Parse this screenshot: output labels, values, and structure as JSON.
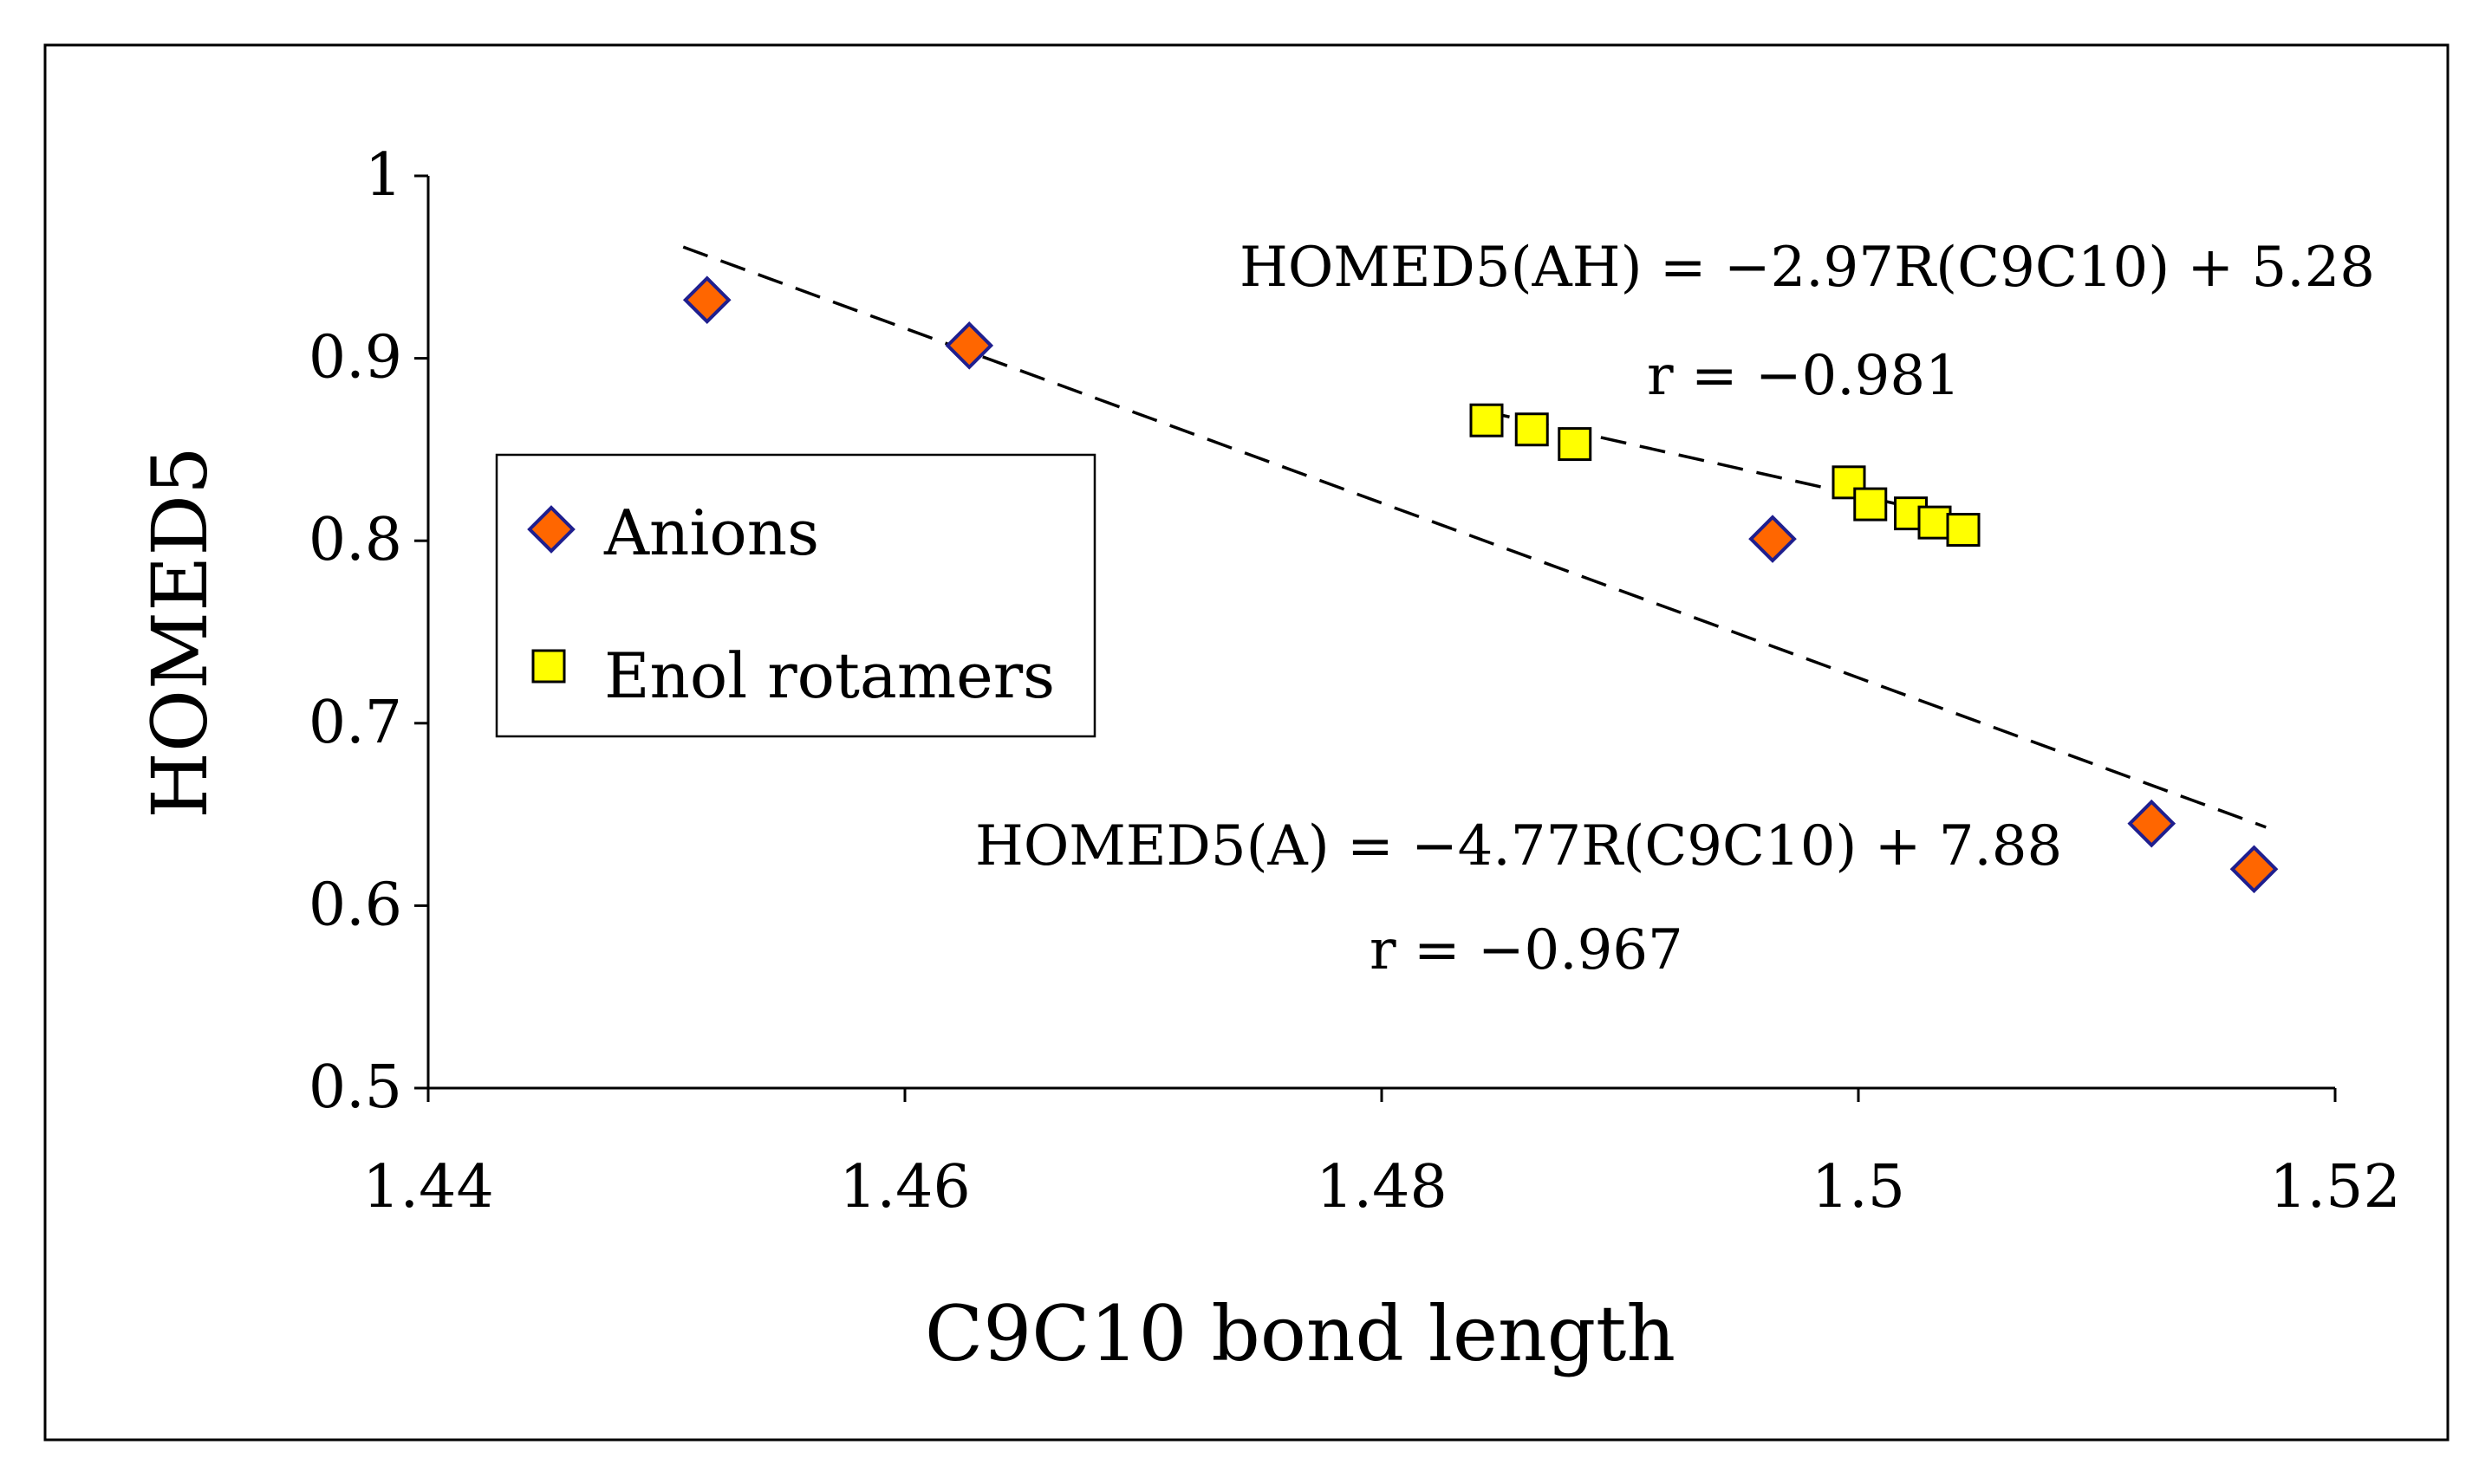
{
  "chart_data": {
    "type": "scatter",
    "title": "",
    "xlabel": "C9C10 bond length",
    "ylabel": "HOMED5",
    "xlim": [
      1.44,
      1.52
    ],
    "ylim": [
      0.5,
      1.0
    ],
    "x_ticks": [
      "1.44",
      "1.46",
      "1.48",
      "1.5",
      "1.52"
    ],
    "y_ticks": [
      "0.5",
      "0.6",
      "0.7",
      "0.8",
      "0.9",
      "1"
    ],
    "grid": false,
    "legend_position": "left-middle",
    "series": [
      {
        "name": "Anions",
        "marker": "diamond",
        "color": "#FF6600",
        "edge_color": "#1F1F8F",
        "x": [
          1.4517,
          1.4627,
          1.4964,
          1.5123,
          1.5166
        ],
        "y": [
          0.932,
          0.907,
          0.801,
          0.645,
          0.62
        ]
      },
      {
        "name": "Enol rotamers",
        "marker": "square",
        "color": "#FFFF00",
        "edge_color": "#000000",
        "x": [
          1.4844,
          1.4863,
          1.4881,
          1.4996,
          1.5005,
          1.5022,
          1.5032,
          1.5044
        ],
        "y": [
          0.866,
          0.861,
          0.853,
          0.832,
          0.82,
          0.815,
          0.81,
          0.806
        ]
      }
    ],
    "trendlines": [
      {
        "name": "HOMED5(AH) fit",
        "style": "dashed",
        "x": [
          1.4843,
          1.5044
        ],
        "y": [
          0.871,
          0.812
        ]
      },
      {
        "name": "HOMED5(A) fit",
        "style": "dashed",
        "x": [
          1.4507,
          1.5171
        ],
        "y": [
          0.961,
          0.643
        ]
      }
    ],
    "annotations": [
      {
        "id": "eq_ah",
        "text": "HOMED5(AH) = −2.97R(C9C10) + 5.28"
      },
      {
        "id": "r_ah",
        "text": "r = −0.981"
      },
      {
        "id": "eq_a",
        "text": "HOMED5(A) = −4.77R(C9C10) + 7.88"
      },
      {
        "id": "r_a",
        "text": "r = −0.967"
      }
    ]
  }
}
